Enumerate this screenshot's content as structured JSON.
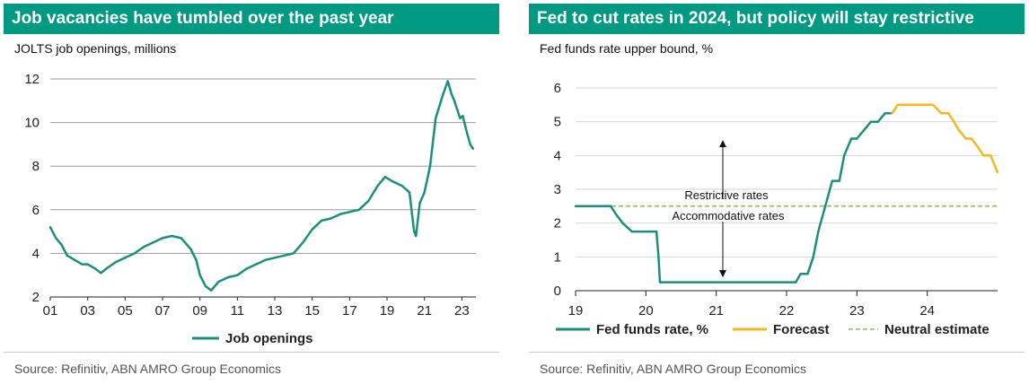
{
  "left": {
    "title": "Job vacancies have tumbled over the past year",
    "source": "Source: Refinitiv, ABN AMRO Group Economics",
    "chart_data": {
      "type": "line",
      "subtitle": "JOLTS job openings, millions",
      "xlabel": "",
      "ylabel": "",
      "ylim": [
        2,
        12
      ],
      "xlim": [
        2001.0,
        2023.75
      ],
      "x_ticks": [
        "01",
        "03",
        "05",
        "07",
        "09",
        "11",
        "13",
        "15",
        "17",
        "19",
        "21",
        "23"
      ],
      "y_ticks": [
        "2",
        "4",
        "6",
        "8",
        "10",
        "12"
      ],
      "grid": "horizontal",
      "legend_position": "bottom",
      "series": [
        {
          "name": "Job openings",
          "color": "#1a8f7e",
          "points": [
            [
              2001.0,
              5.2
            ],
            [
              2001.3,
              4.7
            ],
            [
              2001.6,
              4.4
            ],
            [
              2001.9,
              3.9
            ],
            [
              2002.3,
              3.7
            ],
            [
              2002.7,
              3.5
            ],
            [
              2003.0,
              3.5
            ],
            [
              2003.4,
              3.3
            ],
            [
              2003.7,
              3.1
            ],
            [
              2004.0,
              3.3
            ],
            [
              2004.5,
              3.6
            ],
            [
              2005.0,
              3.8
            ],
            [
              2005.5,
              4.0
            ],
            [
              2006.0,
              4.3
            ],
            [
              2006.5,
              4.5
            ],
            [
              2007.0,
              4.7
            ],
            [
              2007.5,
              4.8
            ],
            [
              2008.0,
              4.7
            ],
            [
              2008.5,
              4.2
            ],
            [
              2008.8,
              3.7
            ],
            [
              2009.0,
              3.0
            ],
            [
              2009.3,
              2.5
            ],
            [
              2009.6,
              2.3
            ],
            [
              2010.0,
              2.7
            ],
            [
              2010.5,
              2.9
            ],
            [
              2011.0,
              3.0
            ],
            [
              2011.5,
              3.3
            ],
            [
              2012.0,
              3.5
            ],
            [
              2012.5,
              3.7
            ],
            [
              2013.0,
              3.8
            ],
            [
              2013.5,
              3.9
            ],
            [
              2014.0,
              4.0
            ],
            [
              2014.5,
              4.5
            ],
            [
              2015.0,
              5.1
            ],
            [
              2015.5,
              5.5
            ],
            [
              2016.0,
              5.6
            ],
            [
              2016.5,
              5.8
            ],
            [
              2017.0,
              5.9
            ],
            [
              2017.5,
              6.0
            ],
            [
              2018.0,
              6.4
            ],
            [
              2018.5,
              7.1
            ],
            [
              2018.9,
              7.5
            ],
            [
              2019.3,
              7.3
            ],
            [
              2019.8,
              7.1
            ],
            [
              2020.2,
              6.8
            ],
            [
              2020.45,
              5.0
            ],
            [
              2020.55,
              4.8
            ],
            [
              2020.75,
              6.3
            ],
            [
              2021.0,
              6.8
            ],
            [
              2021.3,
              8.0
            ],
            [
              2021.6,
              10.2
            ],
            [
              2022.0,
              11.3
            ],
            [
              2022.25,
              11.9
            ],
            [
              2022.45,
              11.3
            ],
            [
              2022.6,
              11.0
            ],
            [
              2022.75,
              10.6
            ],
            [
              2022.9,
              10.2
            ],
            [
              2023.05,
              10.3
            ],
            [
              2023.25,
              9.6
            ],
            [
              2023.45,
              9.0
            ],
            [
              2023.6,
              8.8
            ]
          ]
        }
      ]
    }
  },
  "right": {
    "title": "Fed to cut rates in 2024, but policy will stay restrictive",
    "source": "Source: Refinitiv, ABN AMRO Group Economics",
    "annotations": {
      "restrictive": "Restrictive rates",
      "accommodative": "Accommodative rates"
    },
    "chart_data": {
      "type": "line",
      "subtitle": "Fed funds rate upper bound, %",
      "xlabel": "",
      "ylabel": "",
      "ylim": [
        0,
        6
      ],
      "xlim": [
        2019.0,
        2025.0
      ],
      "x_ticks": [
        "19",
        "20",
        "21",
        "22",
        "23",
        "24"
      ],
      "y_ticks": [
        "0",
        "1",
        "2",
        "3",
        "4",
        "5",
        "6"
      ],
      "grid": "horizontal",
      "legend_position": "bottom",
      "series": [
        {
          "name": "Fed funds rate, %",
          "color": "#1a8f7e",
          "style": "solid",
          "points": [
            [
              2019.0,
              2.5
            ],
            [
              2019.5,
              2.5
            ],
            [
              2019.58,
              2.25
            ],
            [
              2019.67,
              2.0
            ],
            [
              2019.8,
              1.75
            ],
            [
              2020.08,
              1.75
            ],
            [
              2020.15,
              1.75
            ],
            [
              2020.18,
              1.0
            ],
            [
              2020.2,
              0.25
            ],
            [
              2021.0,
              0.25
            ],
            [
              2022.0,
              0.25
            ],
            [
              2022.13,
              0.25
            ],
            [
              2022.2,
              0.5
            ],
            [
              2022.3,
              0.5
            ],
            [
              2022.38,
              1.0
            ],
            [
              2022.45,
              1.75
            ],
            [
              2022.55,
              2.5
            ],
            [
              2022.65,
              3.25
            ],
            [
              2022.75,
              3.25
            ],
            [
              2022.82,
              4.0
            ],
            [
              2022.92,
              4.5
            ],
            [
              2023.0,
              4.5
            ],
            [
              2023.1,
              4.75
            ],
            [
              2023.2,
              5.0
            ],
            [
              2023.3,
              5.0
            ],
            [
              2023.4,
              5.25
            ],
            [
              2023.5,
              5.25
            ]
          ]
        },
        {
          "name": "Forecast",
          "color": "#f3b81b",
          "style": "solid",
          "points": [
            [
              2023.5,
              5.25
            ],
            [
              2023.58,
              5.5
            ],
            [
              2024.08,
              5.5
            ],
            [
              2024.2,
              5.25
            ],
            [
              2024.3,
              5.25
            ],
            [
              2024.38,
              5.0
            ],
            [
              2024.45,
              4.75
            ],
            [
              2024.55,
              4.5
            ],
            [
              2024.63,
              4.5
            ],
            [
              2024.72,
              4.25
            ],
            [
              2024.8,
              4.0
            ],
            [
              2024.9,
              4.0
            ],
            [
              2025.0,
              3.5
            ]
          ]
        },
        {
          "name": "Neutral estimate",
          "color": "#8cc63f",
          "style": "dashed",
          "points": [
            [
              2019.0,
              2.5
            ],
            [
              2025.0,
              2.5
            ]
          ]
        }
      ]
    }
  }
}
